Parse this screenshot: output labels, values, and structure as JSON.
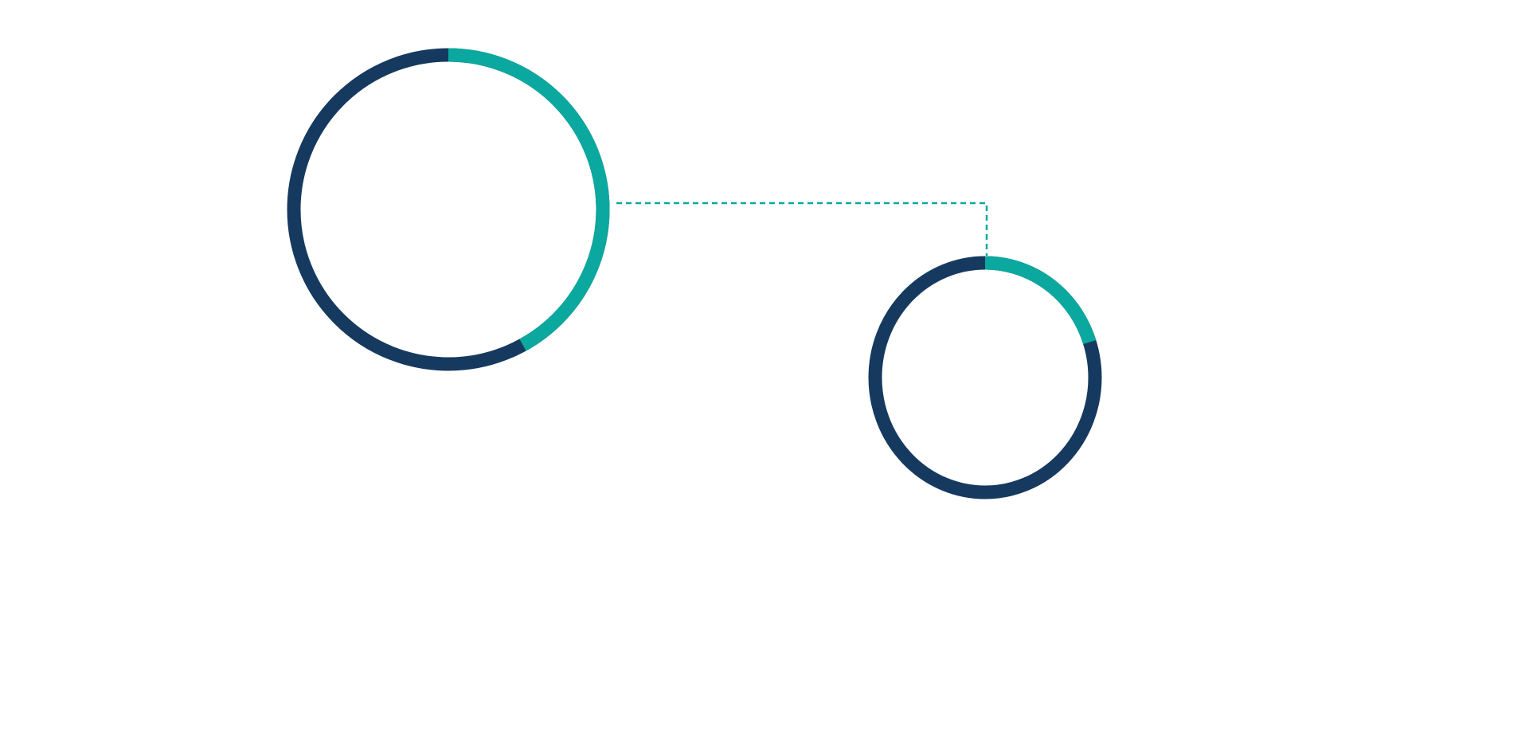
{
  "rings": [
    {
      "progress": 42
    },
    {
      "progress": 20
    }
  ]
}
